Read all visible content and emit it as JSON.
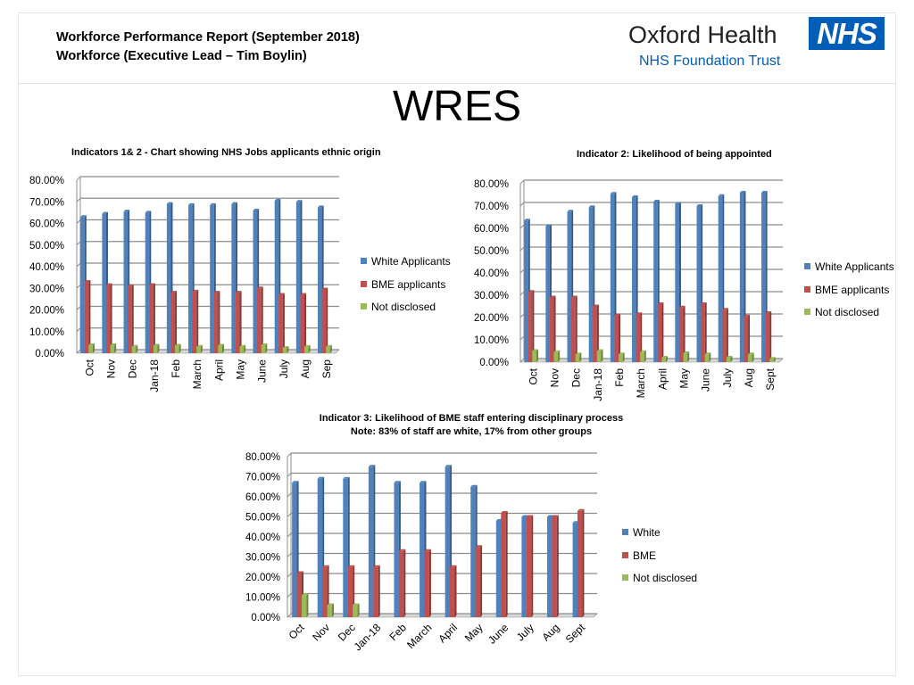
{
  "report": {
    "title_line1": "Workforce Performance Report (September 2018)",
    "title_line2": "Workforce (Executive Lead – Tim Boylin)"
  },
  "logo": {
    "name": "Oxford Health",
    "trust": "NHS Foundation Trust",
    "badge": "NHS",
    "badge_color": "#005eb8"
  },
  "slide_title": "WRES",
  "colors": {
    "white": "#4f81bd",
    "bme": "#c0504d",
    "not_disclosed": "#9bbb59"
  },
  "chart_data": [
    {
      "id": "chart1",
      "type": "bar",
      "title": "Indicators 1& 2 - Chart showing NHS Jobs applicants ethnic origin",
      "categories": [
        "Oct",
        "Nov",
        "Dec",
        "Jan-18",
        "Feb",
        "March",
        "April",
        "May",
        "June",
        "July",
        "Aug",
        "Sep"
      ],
      "series": [
        {
          "name": "White Applicants",
          "values": [
            63,
            64.5,
            65.5,
            65,
            69,
            68.5,
            68.5,
            69,
            66,
            70.5,
            70,
            67.5
          ]
        },
        {
          "name": "BME applicants",
          "values": [
            33,
            31.5,
            31,
            31.5,
            28,
            28.5,
            28,
            28,
            30,
            27,
            27,
            29.5
          ]
        },
        {
          "name": "Not disclosed",
          "values": [
            3.7,
            3.7,
            3,
            3.5,
            3.5,
            3,
            3.5,
            3,
            3.7,
            2.5,
            3,
            3
          ]
        }
      ],
      "y_ticks": [
        "0.00%",
        "10.00%",
        "20.00%",
        "30.00%",
        "40.00%",
        "50.00%",
        "60.00%",
        "70.00%",
        "80.00%"
      ],
      "ylim": [
        0,
        80
      ],
      "grid": true,
      "legend_position": "right"
    },
    {
      "id": "chart2",
      "type": "bar",
      "title": "Indicator 2: Likelihood of being appointed",
      "categories": [
        "Oct",
        "Nov",
        "Dec",
        "Jan-18",
        "Feb",
        "March",
        "April",
        "May",
        "June",
        "July",
        "Aug",
        "Sept"
      ],
      "series": [
        {
          "name": "White Applicants",
          "values": [
            63.5,
            61,
            67.5,
            69.5,
            75.5,
            74,
            72,
            71,
            70,
            74.5,
            76,
            76
          ]
        },
        {
          "name": "BME applicants",
          "values": [
            31.5,
            29,
            29,
            25,
            21,
            21.5,
            26,
            24.5,
            26,
            23.5,
            20.5,
            22
          ]
        },
        {
          "name": "Not disclosed",
          "values": [
            5,
            4.5,
            3.5,
            5,
            3.5,
            4.5,
            2,
            4,
            3.5,
            2,
            3.5,
            1.5
          ]
        }
      ],
      "y_ticks": [
        "0.00%",
        "10.00%",
        "20.00%",
        "30.00%",
        "40.00%",
        "50.00%",
        "60.00%",
        "70.00%",
        "80.00%"
      ],
      "ylim": [
        0,
        80
      ],
      "grid": true,
      "legend_position": "right"
    },
    {
      "id": "chart3",
      "type": "bar",
      "title": "Indicator 3: Likelihood of BME staff entering disciplinary process",
      "subtitle": "Note: 83% of staff are white, 17% from other groups",
      "categories": [
        "Oct",
        "Nov",
        "Dec",
        "Jan-18",
        "Feb",
        "March",
        "April",
        "May",
        "June",
        "July",
        "Aug",
        "Sept"
      ],
      "series": [
        {
          "name": "White",
          "values": [
            67,
            69,
            69,
            75,
            67,
            67,
            75,
            65,
            48,
            50,
            50,
            47
          ]
        },
        {
          "name": "BME",
          "values": [
            22,
            25,
            25,
            25,
            33,
            33,
            25,
            35,
            52,
            50,
            50,
            53
          ]
        },
        {
          "name": "Not disclosed",
          "values": [
            11,
            6,
            6,
            0,
            0,
            0,
            0,
            0,
            0,
            0,
            0,
            0
          ]
        }
      ],
      "y_ticks": [
        "0.00%",
        "10.00%",
        "20.00%",
        "30.00%",
        "40.00%",
        "50.00%",
        "60.00%",
        "70.00%",
        "80.00%"
      ],
      "ylim": [
        0,
        80
      ],
      "grid": true,
      "legend_position": "right"
    }
  ]
}
